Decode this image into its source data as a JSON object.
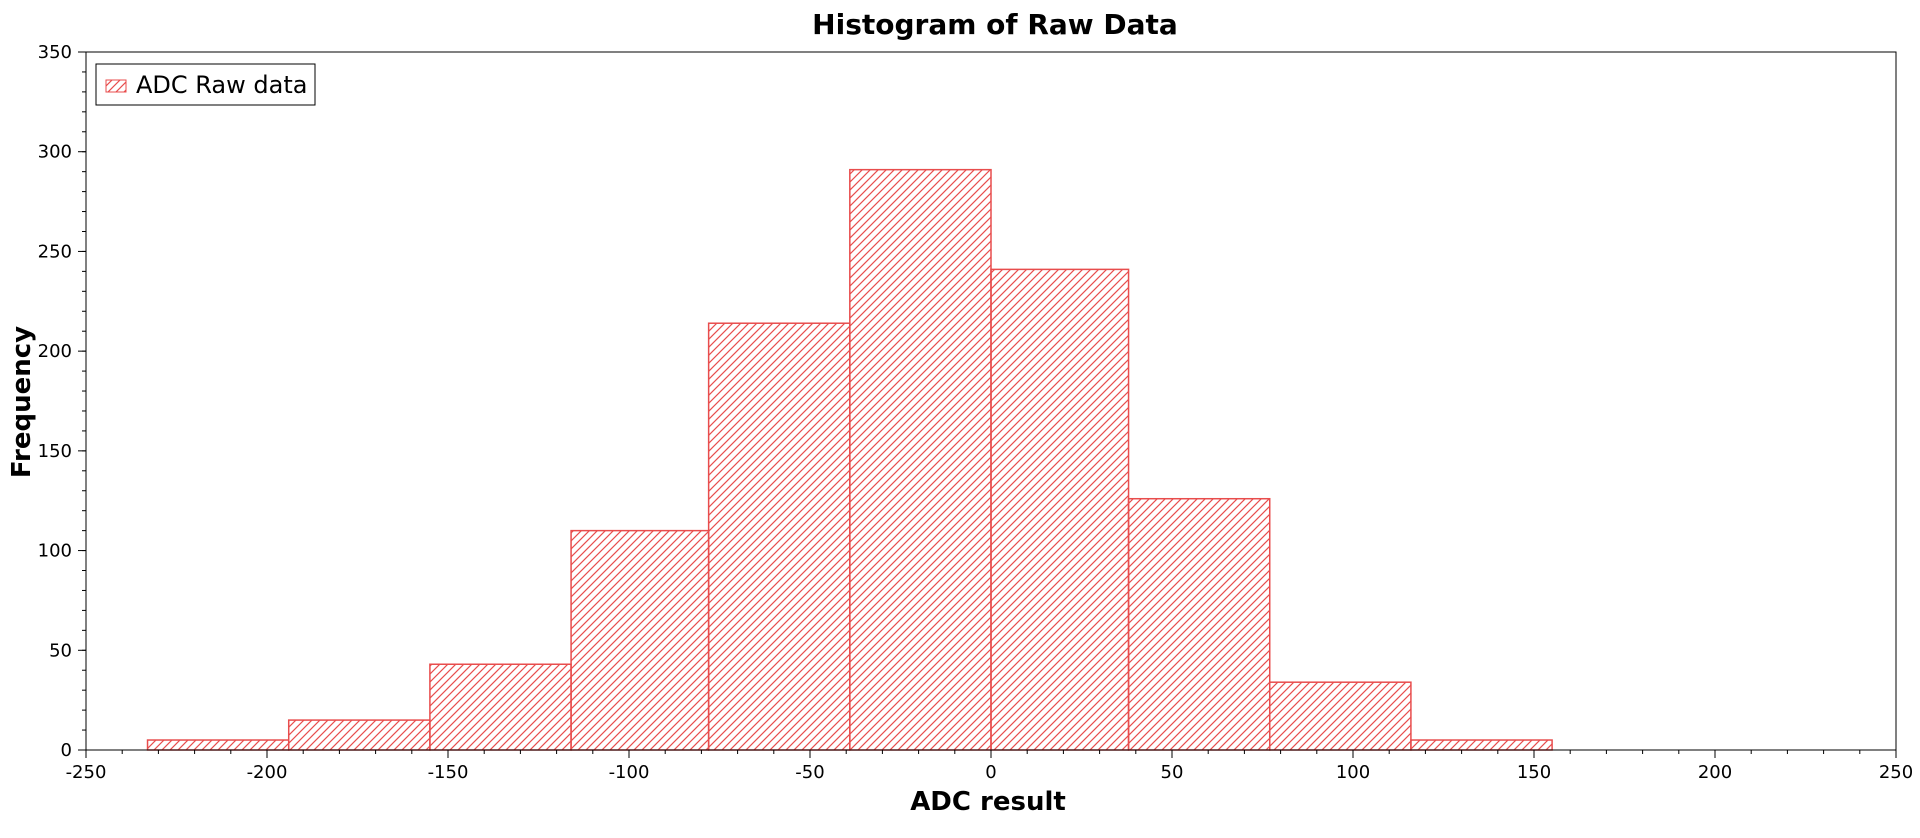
{
  "chart_data": {
    "type": "bar",
    "title": "Histogram of Raw Data",
    "xlabel": "ADC result",
    "ylabel": "Frequency",
    "xlim": [
      -250,
      250
    ],
    "ylim": [
      0,
      350
    ],
    "x_ticks": [
      -250,
      -200,
      -150,
      -100,
      -50,
      0,
      50,
      100,
      150,
      200,
      250
    ],
    "y_ticks": [
      0,
      50,
      100,
      150,
      200,
      250,
      300,
      350
    ],
    "x_minor_step": 10,
    "y_minor_step": 10,
    "grid": false,
    "legend": {
      "position": "top-left",
      "entries": [
        "ADC Raw data"
      ]
    },
    "series": [
      {
        "name": "ADC Raw data",
        "color": "#e84d4d",
        "fill": "hatched",
        "bins": [
          {
            "x_start": -233,
            "x_end": -194,
            "value": 5
          },
          {
            "x_start": -194,
            "x_end": -155,
            "value": 15
          },
          {
            "x_start": -155,
            "x_end": -116,
            "value": 43
          },
          {
            "x_start": -116,
            "x_end": -78,
            "value": 110
          },
          {
            "x_start": -78,
            "x_end": -39,
            "value": 214
          },
          {
            "x_start": -39,
            "x_end": 0,
            "value": 291
          },
          {
            "x_start": 0,
            "x_end": 38,
            "value": 241
          },
          {
            "x_start": 38,
            "x_end": 77,
            "value": 126
          },
          {
            "x_start": 77,
            "x_end": 116,
            "value": 34
          },
          {
            "x_start": 116,
            "x_end": 155,
            "value": 5
          }
        ]
      }
    ]
  }
}
